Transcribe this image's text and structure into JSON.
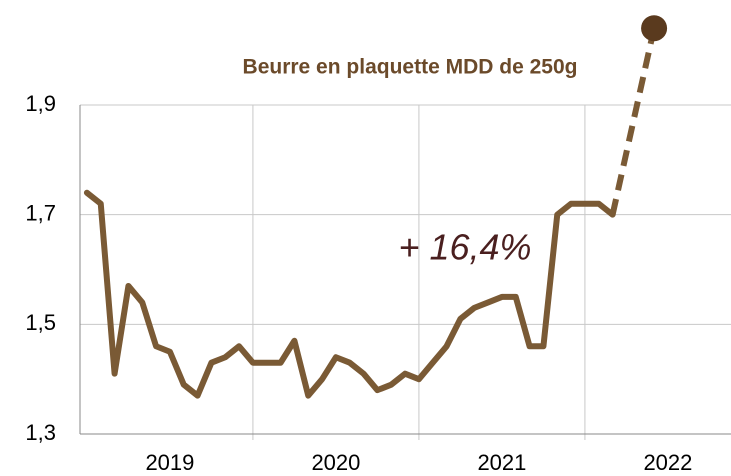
{
  "chart_data": {
    "type": "line",
    "title": "Beurre en plaquette MDD de 250g",
    "annotation": "+ 16,4%",
    "categories": [
      null,
      null,
      null,
      null,
      null,
      null,
      "2019",
      null,
      null,
      null,
      null,
      null,
      null,
      null,
      null,
      null,
      null,
      null,
      "2020",
      null,
      null,
      null,
      null,
      null,
      null,
      null,
      null,
      null,
      null,
      null,
      "2021",
      null,
      null,
      null,
      null,
      null,
      null,
      null,
      null,
      null,
      null,
      null,
      "2022",
      null,
      null,
      null,
      null,
      null
    ],
    "series": [
      {
        "color": "#7a5a35",
        "values": [
          1.74,
          1.72,
          1.41,
          1.57,
          1.54,
          1.46,
          1.45,
          1.39,
          1.37,
          1.43,
          1.44,
          1.46,
          1.43,
          1.43,
          1.43,
          1.47,
          1.37,
          1.4,
          1.44,
          1.43,
          1.41,
          1.38,
          1.39,
          1.41,
          1.4,
          1.43,
          1.46,
          1.51,
          1.53,
          1.54,
          1.55,
          1.55,
          1.46,
          1.46,
          1.7,
          1.72,
          1.72,
          1.72,
          1.7,
          null,
          null,
          null,
          null,
          null,
          null,
          null,
          null,
          null
        ]
      },
      {
        "color": "#5a3a1e",
        "values": [
          null,
          null,
          null,
          null,
          null,
          null,
          null,
          null,
          null,
          null,
          null,
          null,
          null,
          null,
          null,
          null,
          null,
          null,
          null,
          null,
          null,
          null,
          null,
          null,
          null,
          null,
          null,
          null,
          null,
          null,
          null,
          null,
          null,
          null,
          null,
          null,
          null,
          null,
          null,
          null,
          null,
          2.04,
          null,
          null,
          null,
          null,
          null,
          null
        ]
      }
    ],
    "ylim": [
      1.3,
      2.1
    ],
    "yticks": [
      {
        "value": 1.3,
        "label": "1,3"
      },
      {
        "value": 1.5,
        "label": "1,5"
      },
      {
        "value": 1.7,
        "label": "1,7"
      },
      {
        "value": 1.9,
        "label": "1,9"
      }
    ],
    "grid": true
  }
}
